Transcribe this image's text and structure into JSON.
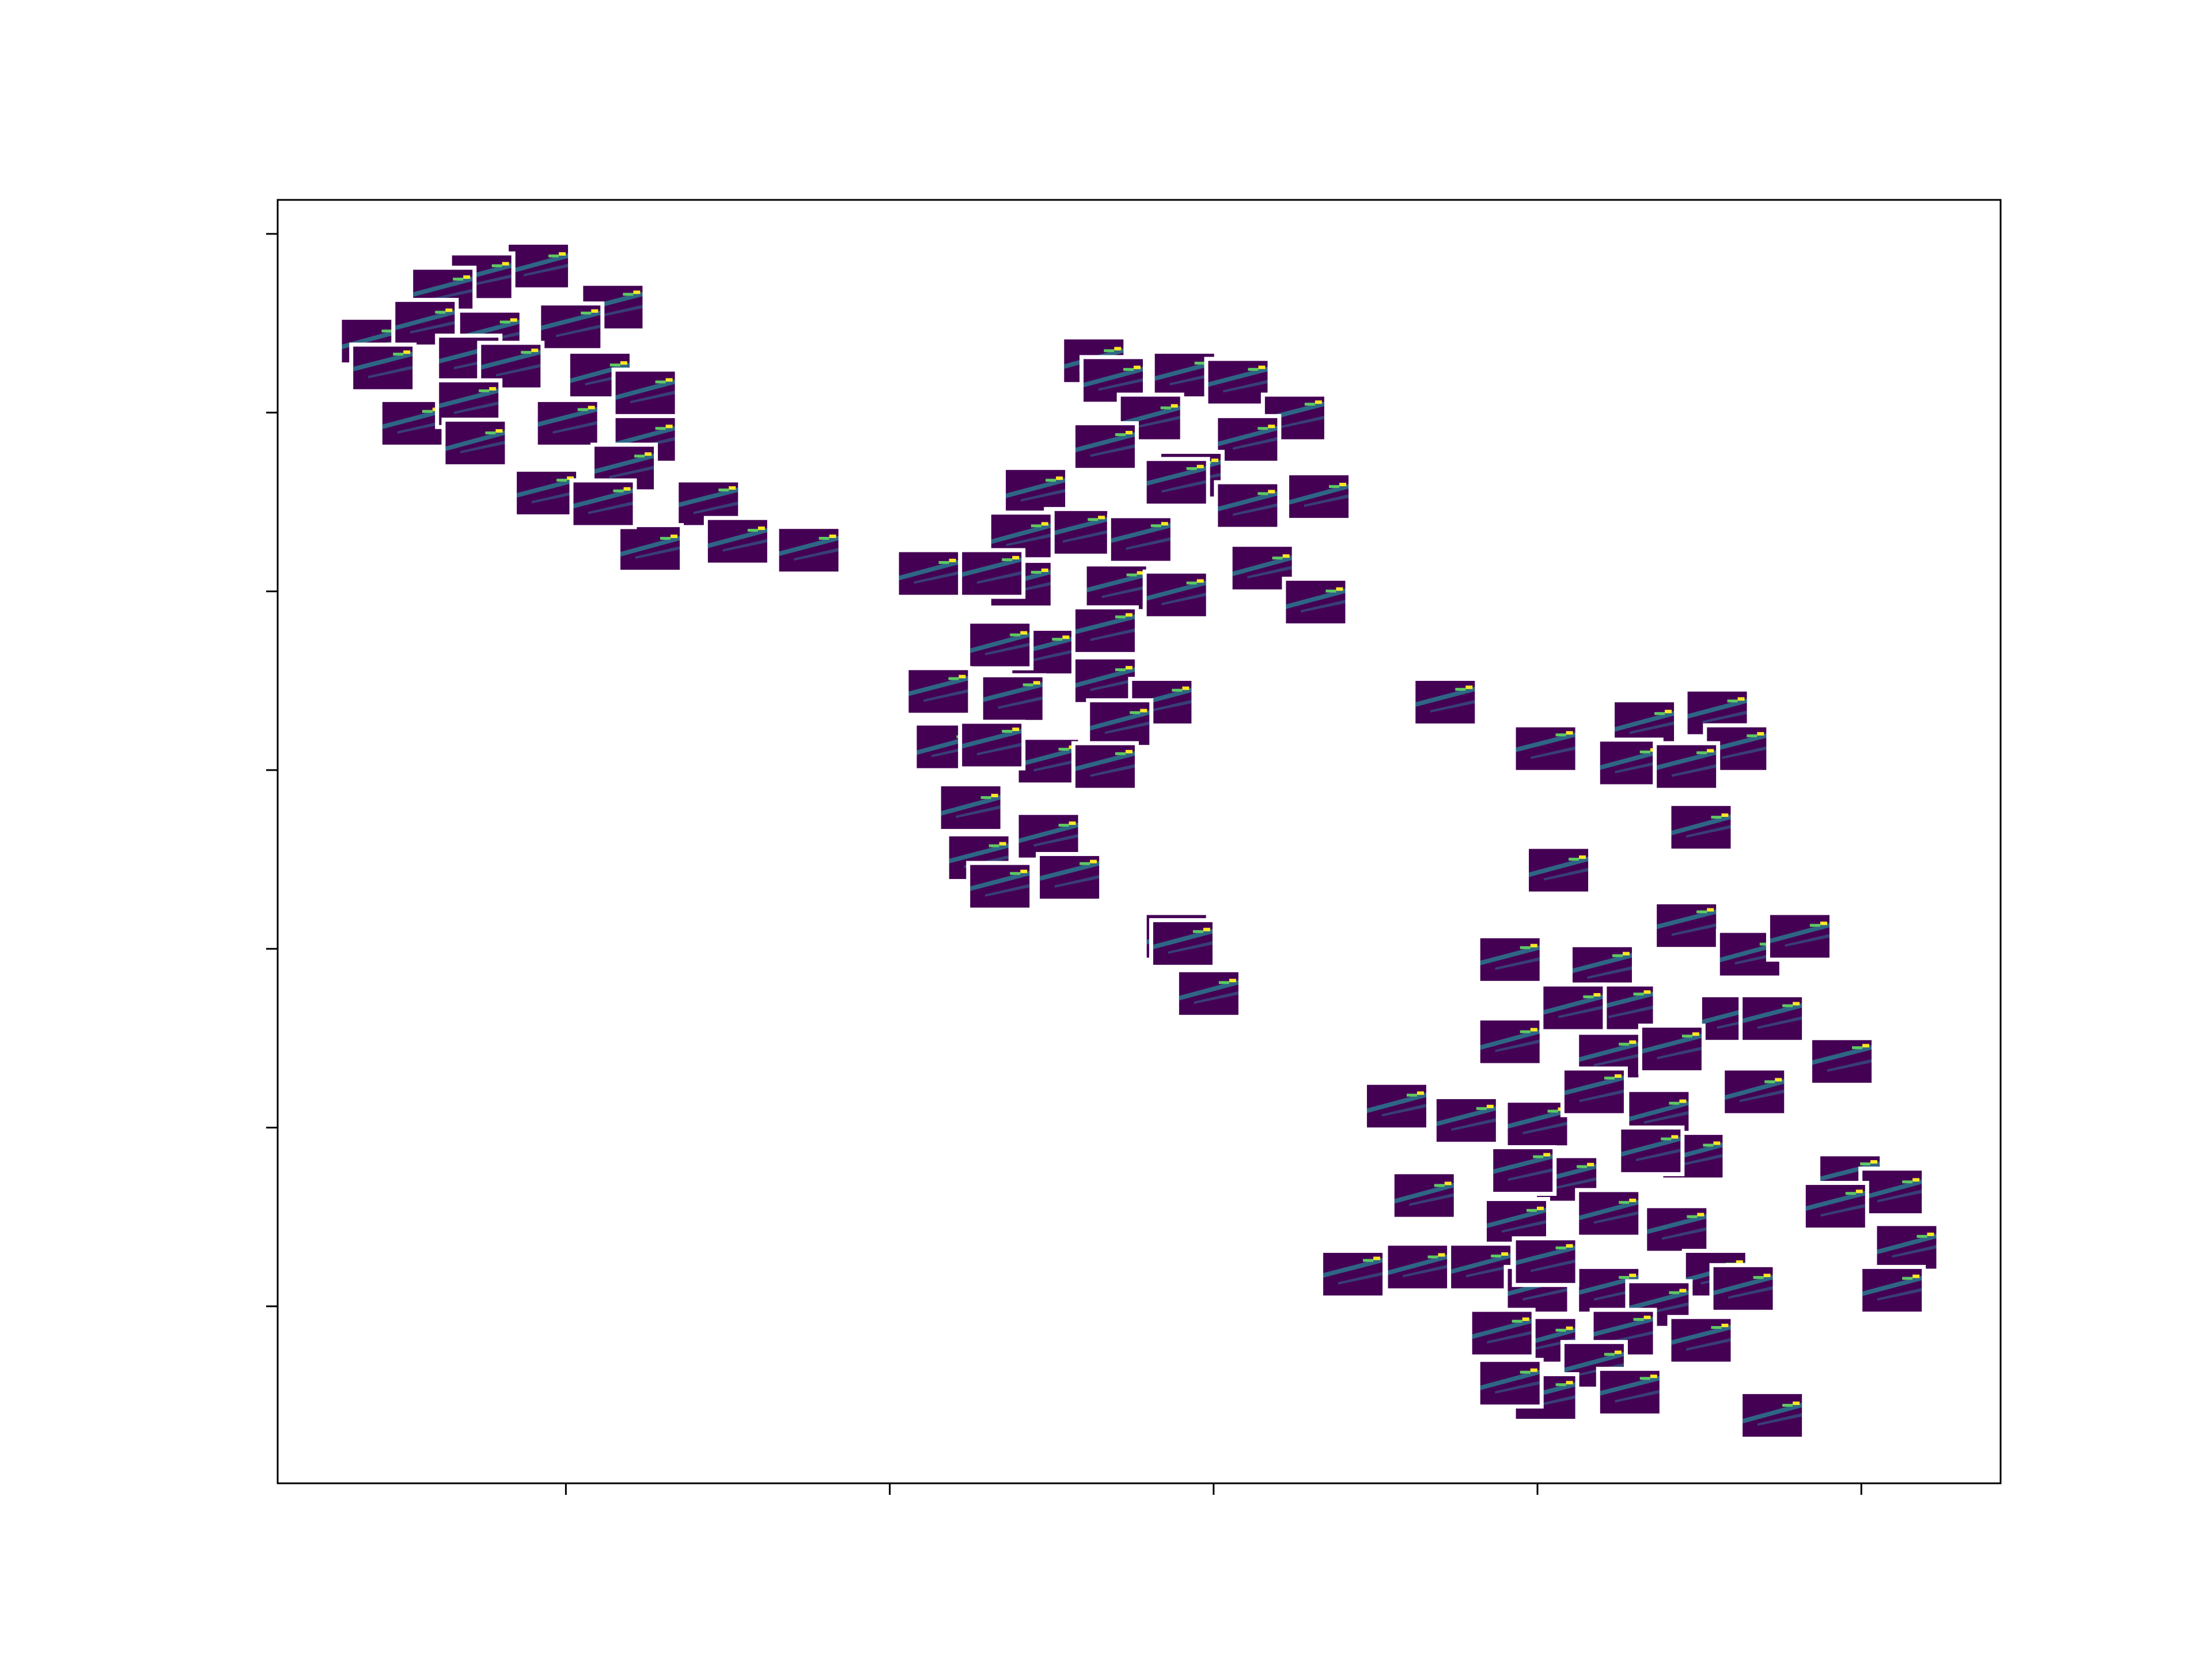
{
  "chart_data": {
    "type": "scatter",
    "color": "#440154",
    "xlim": [
      -57.8,
      48.6
    ],
    "ylim": [
      -39.9,
      31.9
    ],
    "xticks": [
      -40,
      -20,
      0,
      20,
      40
    ],
    "yticks": [
      30,
      20,
      10,
      0,
      -10,
      -20,
      -30
    ],
    "x": [
      -41.7,
      -45.2,
      -47.6,
      -37.1,
      -39.7,
      -52.0,
      -48.7,
      -44.7,
      -46.0,
      -43.4,
      -37.9,
      -35.1,
      -49.5,
      -46.0,
      -39.9,
      -45.6,
      -35.1,
      -36.4,
      -41.2,
      -31.2,
      -34.8,
      -29.4,
      -25.0,
      -37.7,
      -51.3,
      -7.4,
      -6.2,
      -1.8,
      1.5,
      5.0,
      -3.9,
      2.1,
      -6.7,
      -1.4,
      -2.3,
      6.5,
      -11.0,
      2.1,
      -8.4,
      -4.5,
      -11.9,
      -17.6,
      -11.9,
      -6.0,
      -13.7,
      3.0,
      6.3,
      -2.3,
      -10.6,
      -6.7,
      -13.2,
      -6.7,
      -3.2,
      -17.0,
      -12.4,
      -16.5,
      -5.8,
      -10.2,
      -6.7,
      -13.7,
      -15.0,
      -10.2,
      -14.5,
      -13.2,
      -8.9,
      -2.3,
      -0.3,
      -1.9,
      14.3,
      20.5,
      26.6,
      25.7,
      31.1,
      32.3,
      29.2,
      30.1,
      21.3,
      18.3,
      24.0,
      29.2,
      33.1,
      36.2,
      32.0,
      34.5,
      25.3,
      18.3,
      22.2,
      24.4,
      28.3,
      38.8,
      33.4,
      11.3,
      15.6,
      20.0,
      23.5,
      27.5,
      29.6,
      27.0,
      21.8,
      19.1,
      13.0,
      24.4,
      18.7,
      28.6,
      39.3,
      41.9,
      42.8,
      41.9,
      38.4,
      8.6,
      12.6,
      16.5,
      20.0,
      24.4,
      20.5,
      31.0,
      32.7,
      27.5,
      30.1,
      25.3,
      20.5,
      23.5,
      17.8,
      20.5,
      25.7,
      34.5,
      18.3
    ],
    "values": [
      28.2,
      27.6,
      26.8,
      25.9,
      24.8,
      24.0,
      25.0,
      24.4,
      23.0,
      22.6,
      22.1,
      21.1,
      19.4,
      20.5,
      19.4,
      18.3,
      18.5,
      16.9,
      15.5,
      14.9,
      12.4,
      12.8,
      12.3,
      14.9,
      22.5,
      22.9,
      21.8,
      22.1,
      21.7,
      19.7,
      19.7,
      18.5,
      18.1,
      16.5,
      16.1,
      15.3,
      15.6,
      14.8,
      13.3,
      12.9,
      13.1,
      11.0,
      10.4,
      10.2,
      11.0,
      11.3,
      9.4,
      9.8,
      6.6,
      7.8,
      7.0,
      5.0,
      3.8,
      4.4,
      4.0,
      1.3,
      2.6,
      0.5,
      0.2,
      1.4,
      -2.1,
      -3.7,
      -4.9,
      -6.5,
      -6.0,
      -9.3,
      -12.5,
      -9.7,
      3.8,
      1.2,
      2.6,
      0.4,
      3.2,
      1.2,
      0.2,
      -3.2,
      -5.6,
      -10.6,
      -11.1,
      -8.7,
      -10.3,
      -9.3,
      -13.9,
      -13.9,
      -13.3,
      -15.2,
      -13.3,
      -16.0,
      -15.6,
      -16.3,
      -18.0,
      -18.8,
      -19.6,
      -19.8,
      -18.0,
      -19.2,
      -21.6,
      -21.3,
      -22.9,
      -22.4,
      -23.8,
      -24.8,
      -25.3,
      -25.7,
      -22.8,
      -23.6,
      -26.7,
      -29.1,
      -24.4,
      -28.2,
      -27.8,
      -27.8,
      -29.1,
      -29.1,
      -27.5,
      -28.2,
      -29.0,
      -29.9,
      -31.9,
      -31.5,
      -31.9,
      -33.3,
      -31.5,
      -35.1,
      -34.8,
      -36.1,
      -34.3
    ]
  }
}
